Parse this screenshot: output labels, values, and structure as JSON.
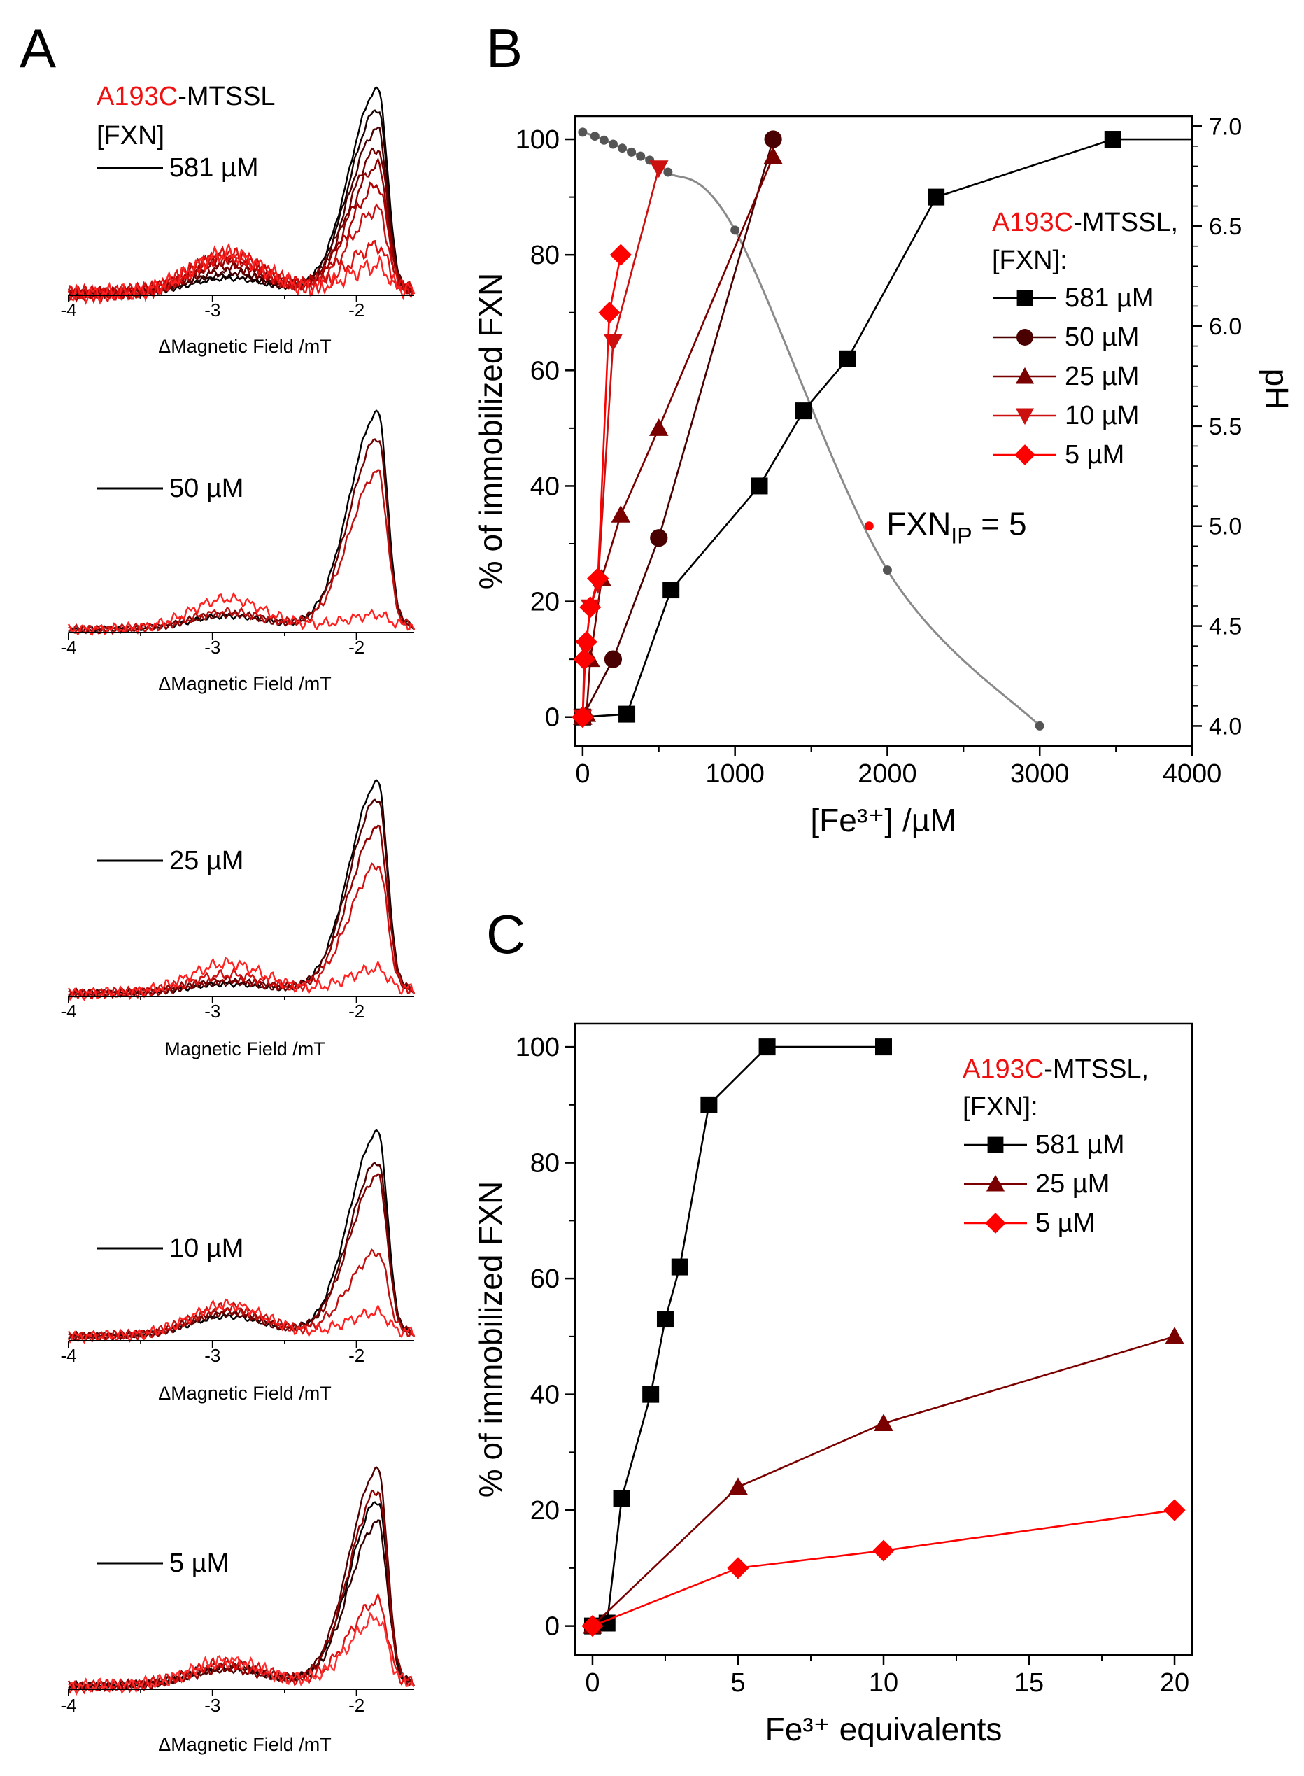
{
  "panels": {
    "a": "A",
    "b": "B",
    "c": "C"
  },
  "colors": {
    "black": "#000000",
    "dark": "#7a0000",
    "mid": "#a01010",
    "bright": "#ff0000",
    "red": "#ee1111",
    "gray": "#888888",
    "darkgray": "#555555"
  },
  "epr": {
    "legend_prefix": "A193C",
    "legend_suffix": "-MTSSL",
    "legend_fxn": "[FXN]",
    "x_ticks": [
      "-4",
      "-3",
      "-2"
    ],
    "x_range": [
      -4,
      -1.6
    ],
    "panels": [
      {
        "conc": "581 µM",
        "xlabel": "ΔMagnetic Field /mT",
        "traces": [
          {
            "color": "#000000",
            "amp": 1.0,
            "low": 0.15
          },
          {
            "color": "#1a0000",
            "amp": 0.9,
            "low": 0.18
          },
          {
            "color": "#4a0000",
            "amp": 0.8,
            "low": 0.22
          },
          {
            "color": "#700000",
            "amp": 0.7,
            "low": 0.28
          },
          {
            "color": "#900000",
            "amp": 0.62,
            "low": 0.33
          },
          {
            "color": "#b00000",
            "amp": 0.52,
            "low": 0.38
          },
          {
            "color": "#c81010",
            "amp": 0.4,
            "low": 0.4
          },
          {
            "color": "#e01010",
            "amp": 0.22,
            "low": 0.41
          },
          {
            "color": "#ff2020",
            "amp": 0.12,
            "low": 0.42
          }
        ]
      },
      {
        "conc": "50 µM",
        "xlabel": "ΔMagnetic Field /mT",
        "traces": [
          {
            "color": "#000000",
            "amp": 1.0,
            "low": 0.12
          },
          {
            "color": "#700000",
            "amp": 0.88,
            "low": 0.14
          },
          {
            "color": "#c01010",
            "amp": 0.72,
            "low": 0.16
          },
          {
            "color": "#ff2020",
            "amp": 0.05,
            "low": 0.3
          }
        ]
      },
      {
        "conc": "25 µM",
        "xlabel": "Magnetic Field /mT",
        "traces": [
          {
            "color": "#000000",
            "amp": 1.0,
            "low": 0.08
          },
          {
            "color": "#500000",
            "amp": 0.92,
            "low": 0.1
          },
          {
            "color": "#900000",
            "amp": 0.78,
            "low": 0.12
          },
          {
            "color": "#d01010",
            "amp": 0.6,
            "low": 0.18
          },
          {
            "color": "#ff2020",
            "amp": 0.1,
            "low": 0.3
          }
        ]
      },
      {
        "conc": "10 µM",
        "xlabel": "ΔMagnetic Field /mT",
        "traces": [
          {
            "color": "#000000",
            "amp": 1.0,
            "low": 0.2
          },
          {
            "color": "#500000",
            "amp": 0.85,
            "low": 0.23
          },
          {
            "color": "#800000",
            "amp": 0.78,
            "low": 0.25
          },
          {
            "color": "#c01010",
            "amp": 0.4,
            "low": 0.3
          },
          {
            "color": "#ff2020",
            "amp": 0.1,
            "low": 0.33
          }
        ]
      },
      {
        "conc": "5 µM",
        "xlabel": "ΔMagnetic Field /mT",
        "traces": [
          {
            "color": "#500000",
            "amp": 1.0,
            "low": 0.15
          },
          {
            "color": "#000000",
            "amp": 0.85,
            "low": 0.18
          },
          {
            "color": "#300000",
            "amp": 0.75,
            "low": 0.2
          },
          {
            "color": "#900000",
            "amp": 0.9,
            "low": 0.17
          },
          {
            "color": "#e01010",
            "amp": 0.38,
            "low": 0.22
          },
          {
            "color": "#ff3030",
            "amp": 0.3,
            "low": 0.24
          }
        ]
      }
    ]
  },
  "chart_data": [
    {
      "id": "B",
      "type": "line",
      "xlabel": "[Fe³⁺] /µM",
      "ylabel": "% of immobilized FXN",
      "y2label": "pH",
      "xlim": [
        -50,
        4000
      ],
      "ylim": [
        -5,
        104
      ],
      "y2lim": [
        3.9,
        7.05
      ],
      "x_ticks": [
        0,
        1000,
        2000,
        3000,
        4000
      ],
      "y_ticks": [
        0,
        20,
        40,
        60,
        80,
        100
      ],
      "y2_ticks": [
        4.0,
        4.5,
        5.0,
        5.5,
        6.0,
        6.5,
        7.0
      ],
      "y2_tick_labels": [
        "4.0",
        "4.5",
        "5.0",
        "5.5",
        "6.0",
        "6.5",
        "7.0"
      ],
      "legend_title_prefix": "A193C",
      "legend_title_suffix": "-MTSSL,",
      "legend_title_line2": "[FXN]:",
      "annotation_main": "FXN",
      "annotation_sub": "IP",
      "annotation_rest": " = 5",
      "annotation_point": {
        "x": 1880,
        "ph": 5.0
      },
      "ph_curve": {
        "points": [
          {
            "x": 0,
            "ph": 6.97
          },
          {
            "x": 80,
            "ph": 6.95
          },
          {
            "x": 140,
            "ph": 6.93
          },
          {
            "x": 200,
            "ph": 6.91
          },
          {
            "x": 260,
            "ph": 6.89
          },
          {
            "x": 320,
            "ph": 6.87
          },
          {
            "x": 380,
            "ph": 6.85
          },
          {
            "x": 440,
            "ph": 6.83
          },
          {
            "x": 500,
            "ph": 6.8
          },
          {
            "x": 560,
            "ph": 6.77
          },
          {
            "x": 1000,
            "ph": 6.48
          },
          {
            "x": 2000,
            "ph": 4.78
          },
          {
            "x": 3000,
            "ph": 4.0
          }
        ]
      },
      "series": [
        {
          "name": "581 µM",
          "marker": "square",
          "color": "#000000",
          "x": [
            0,
            290,
            580,
            1160,
            1450,
            1740,
            2320,
            3480,
            4000
          ],
          "y": [
            0,
            0.5,
            22,
            40,
            53,
            62,
            90,
            100,
            100
          ]
        },
        {
          "name": "50 µM",
          "marker": "circle",
          "color": "#4a0000",
          "x": [
            0,
            200,
            500,
            1250
          ],
          "y": [
            0,
            10,
            31,
            100
          ]
        },
        {
          "name": "25 µM",
          "marker": "triangle-up",
          "color": "#7a0000",
          "x": [
            0,
            25,
            50,
            125,
            250,
            500,
            1250
          ],
          "y": [
            0,
            0.5,
            10,
            24,
            35,
            50,
            97
          ]
        },
        {
          "name": "10 µM",
          "marker": "triangle-down",
          "color": "#cc1010",
          "x": [
            0,
            20,
            50,
            100,
            200,
            500
          ],
          "y": [
            0,
            12,
            19,
            23,
            65,
            95
          ]
        },
        {
          "name": "5 µM",
          "marker": "diamond",
          "color": "#ff0000",
          "x": [
            0,
            10,
            25,
            50,
            100,
            175,
            250
          ],
          "y": [
            0,
            10,
            13,
            19,
            24,
            70,
            80
          ]
        }
      ]
    },
    {
      "id": "C",
      "type": "line",
      "xlabel": "Fe³⁺ equivalents",
      "ylabel": "% of immobilized FXN",
      "xlim": [
        -0.6,
        20.6
      ],
      "ylim": [
        -5,
        104
      ],
      "x_ticks": [
        0,
        5,
        10,
        15,
        20
      ],
      "y_ticks": [
        0,
        20,
        40,
        60,
        80,
        100
      ],
      "legend_title_prefix": "A193C",
      "legend_title_suffix": "-MTSSL,",
      "legend_title_line2": "[FXN]:",
      "series": [
        {
          "name": "581 µM",
          "marker": "square",
          "color": "#000000",
          "x": [
            0,
            0.5,
            1,
            2,
            2.5,
            3,
            4,
            6,
            10
          ],
          "y": [
            0,
            0.5,
            22,
            40,
            53,
            62,
            90,
            100,
            100
          ]
        },
        {
          "name": "25 µM",
          "marker": "triangle-up",
          "color": "#7a0000",
          "x": [
            0,
            5,
            10,
            20
          ],
          "y": [
            0,
            24,
            35,
            50
          ]
        },
        {
          "name": "5 µM",
          "marker": "diamond",
          "color": "#ff0000",
          "x": [
            0,
            5,
            10,
            20
          ],
          "y": [
            0,
            10,
            13,
            20
          ]
        }
      ]
    }
  ]
}
